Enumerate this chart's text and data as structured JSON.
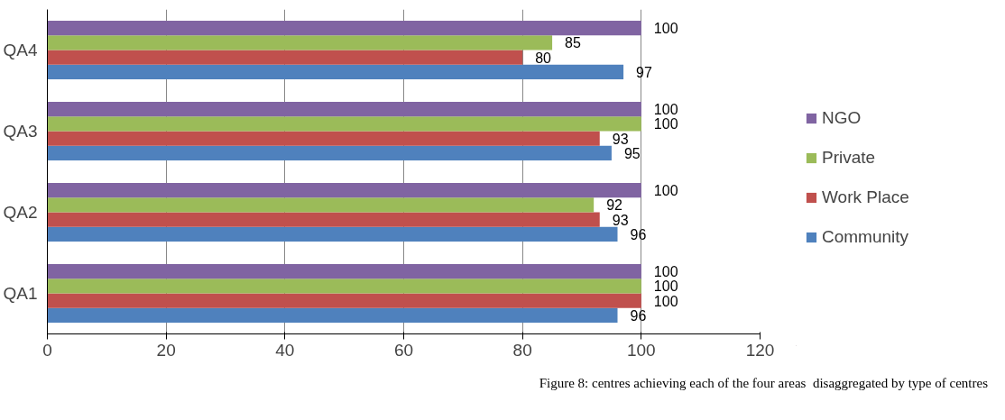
{
  "chart_data": {
    "type": "bar",
    "orientation": "horizontal",
    "categories": [
      "QA4",
      "QA3",
      "QA2",
      "QA1"
    ],
    "series": [
      {
        "name": "Community",
        "color": "#4f81bd",
        "values": [
          97,
          95,
          96,
          96
        ]
      },
      {
        "name": "Work Place",
        "color": "#c0504d",
        "values": [
          80,
          93,
          93,
          100
        ]
      },
      {
        "name": "Private",
        "color": "#9bbb59",
        "values": [
          85,
          100,
          92,
          100
        ]
      },
      {
        "name": "NGO",
        "color": "#8064a2",
        "values": [
          100,
          100,
          100,
          100
        ]
      }
    ],
    "xlim": [
      0,
      120
    ],
    "xticks": [
      0,
      20,
      40,
      60,
      80,
      100,
      120
    ],
    "grid": "x",
    "legend": "right",
    "data_labels": true,
    "annotations": [
      "Figure 8: centres achieving each of the four areas  disaggregated by type of centres"
    ]
  }
}
